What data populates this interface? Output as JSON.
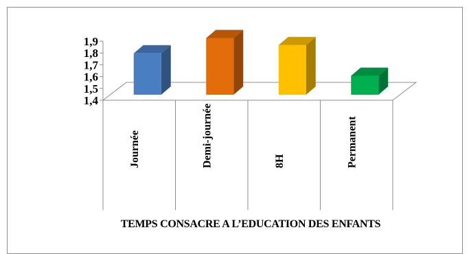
{
  "chart_data": {
    "type": "bar",
    "style": "3d-column",
    "title": "TEMPS CONSACRE A L’EDUCATION DES ENFANTS",
    "categories": [
      "Journée",
      "Demi-journée",
      "8H",
      "Permanent"
    ],
    "values": [
      1.75,
      1.88,
      1.82,
      1.56
    ],
    "colors": [
      "#4a7ec3",
      "#e46c0a",
      "#ffc000",
      "#00b050"
    ],
    "ylim": [
      1.4,
      1.9
    ],
    "yticks": [
      "1,4",
      "1,5",
      "1,6",
      "1,7",
      "1,8",
      "1,9"
    ],
    "grid": false,
    "legend": "none"
  }
}
